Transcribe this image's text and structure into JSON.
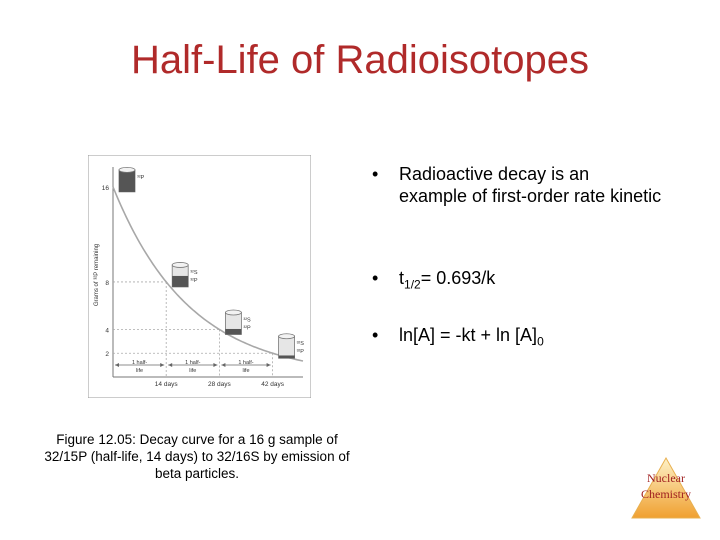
{
  "title": "Half-Life of Radioisotopes",
  "bullets": [
    {
      "text": "Radioactive decay is an example of first-order rate kinetic"
    },
    {
      "text_main": "t",
      "text_sub": "1/2",
      "text_tail": "= 0.693/k"
    },
    {
      "text_main": "ln[A] = -kt + ln [A]",
      "text_sub": "0"
    }
  ],
  "bullet_char": "•",
  "caption": "Figure 12.05: Decay curve for a 16 g sample of 32/15P (half-life, 14 days) to 32/16S by emission of beta particles.",
  "logo": {
    "line1": "Nuclear",
    "line2": "Chemistry"
  },
  "colors": {
    "title": "#b02a2a",
    "logo_orange": "#f0a030",
    "logo_text": "#a02020"
  },
  "chart_data": {
    "type": "line",
    "ylabel": "Grams of ³²P remaining",
    "ytick_labels": [
      "16",
      "8",
      "4",
      "2"
    ],
    "yticks": [
      16,
      8,
      4,
      2
    ],
    "x": [
      0,
      7,
      14,
      21,
      28,
      35,
      42,
      49
    ],
    "values": [
      16,
      11.3,
      8,
      5.7,
      4,
      2.8,
      2,
      1.4
    ],
    "xlim": [
      0,
      50
    ],
    "ylim": [
      0,
      17
    ],
    "xtick_labels": [
      "14 days",
      "28 days",
      "42 days"
    ],
    "xticks": [
      14,
      28,
      42
    ],
    "interval_labels": [
      "1 half-life",
      "1 half-life",
      "1 half-life"
    ],
    "cylinder_labels": [
      {
        "top": "³²P",
        "bottom": ""
      },
      {
        "top": "³²S",
        "bottom": "³²P"
      },
      {
        "top": "³²S",
        "bottom": "³²P"
      },
      {
        "top": "³²S",
        "bottom": "³²P"
      }
    ],
    "grid": false
  }
}
